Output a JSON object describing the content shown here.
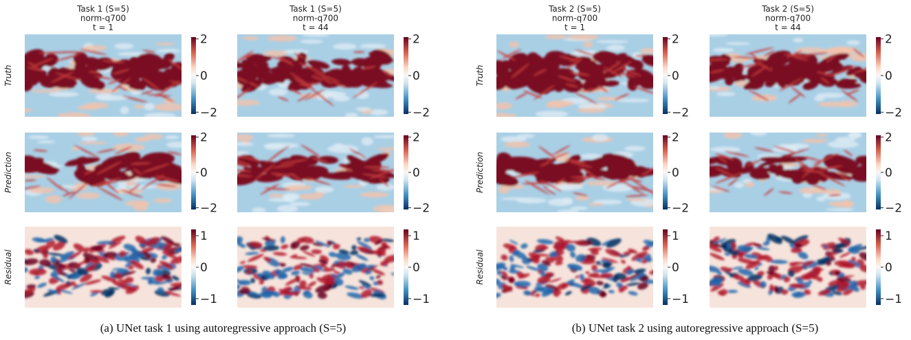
{
  "figure": {
    "panels": [
      {
        "caption": "(a) UNet task 1 using autoregressive approach (S=5)",
        "columns": [
          {
            "title": [
              "Task 1 (S=5)",
              "norm-q700",
              "t = 1"
            ]
          },
          {
            "title": [
              "Task 1 (S=5)",
              "norm-q700",
              "t = 44"
            ]
          }
        ],
        "rows": [
          {
            "label": "Truth",
            "clim": [
              -2.1,
              2.1
            ],
            "ticks": [
              2,
              0,
              {
                "value": -2,
                "label": "−2"
              }
            ]
          },
          {
            "label": "Prediction",
            "clim": [
              -2.1,
              2.1
            ],
            "ticks": [
              2,
              0,
              {
                "value": -2,
                "label": "−2"
              }
            ]
          },
          {
            "label": "Residual",
            "clim": [
              -1.2,
              1.2
            ],
            "ticks": [
              1,
              0,
              {
                "value": -1,
                "label": "−1"
              }
            ]
          }
        ]
      },
      {
        "caption": "(b) UNet task 2 using autoregressive approach (S=5)",
        "columns": [
          {
            "title": [
              "Task 2 (S=5)",
              "norm-q700",
              "t = 1"
            ]
          },
          {
            "title": [
              "Task 2 (S=5)",
              "norm-q700",
              "t = 44"
            ]
          }
        ],
        "rows": [
          {
            "label": "Truth",
            "clim": [
              -2.1,
              2.1
            ],
            "ticks": [
              2,
              0,
              {
                "value": -2,
                "label": "−2"
              }
            ]
          },
          {
            "label": "Prediction",
            "clim": [
              -2.1,
              2.1
            ],
            "ticks": [
              2,
              0,
              {
                "value": -2,
                "label": "−2"
              }
            ]
          },
          {
            "label": "Residual",
            "clim": [
              -1.2,
              1.2
            ],
            "ticks": [
              1,
              0,
              {
                "value": -1,
                "label": "−1"
              }
            ]
          }
        ]
      }
    ]
  }
}
